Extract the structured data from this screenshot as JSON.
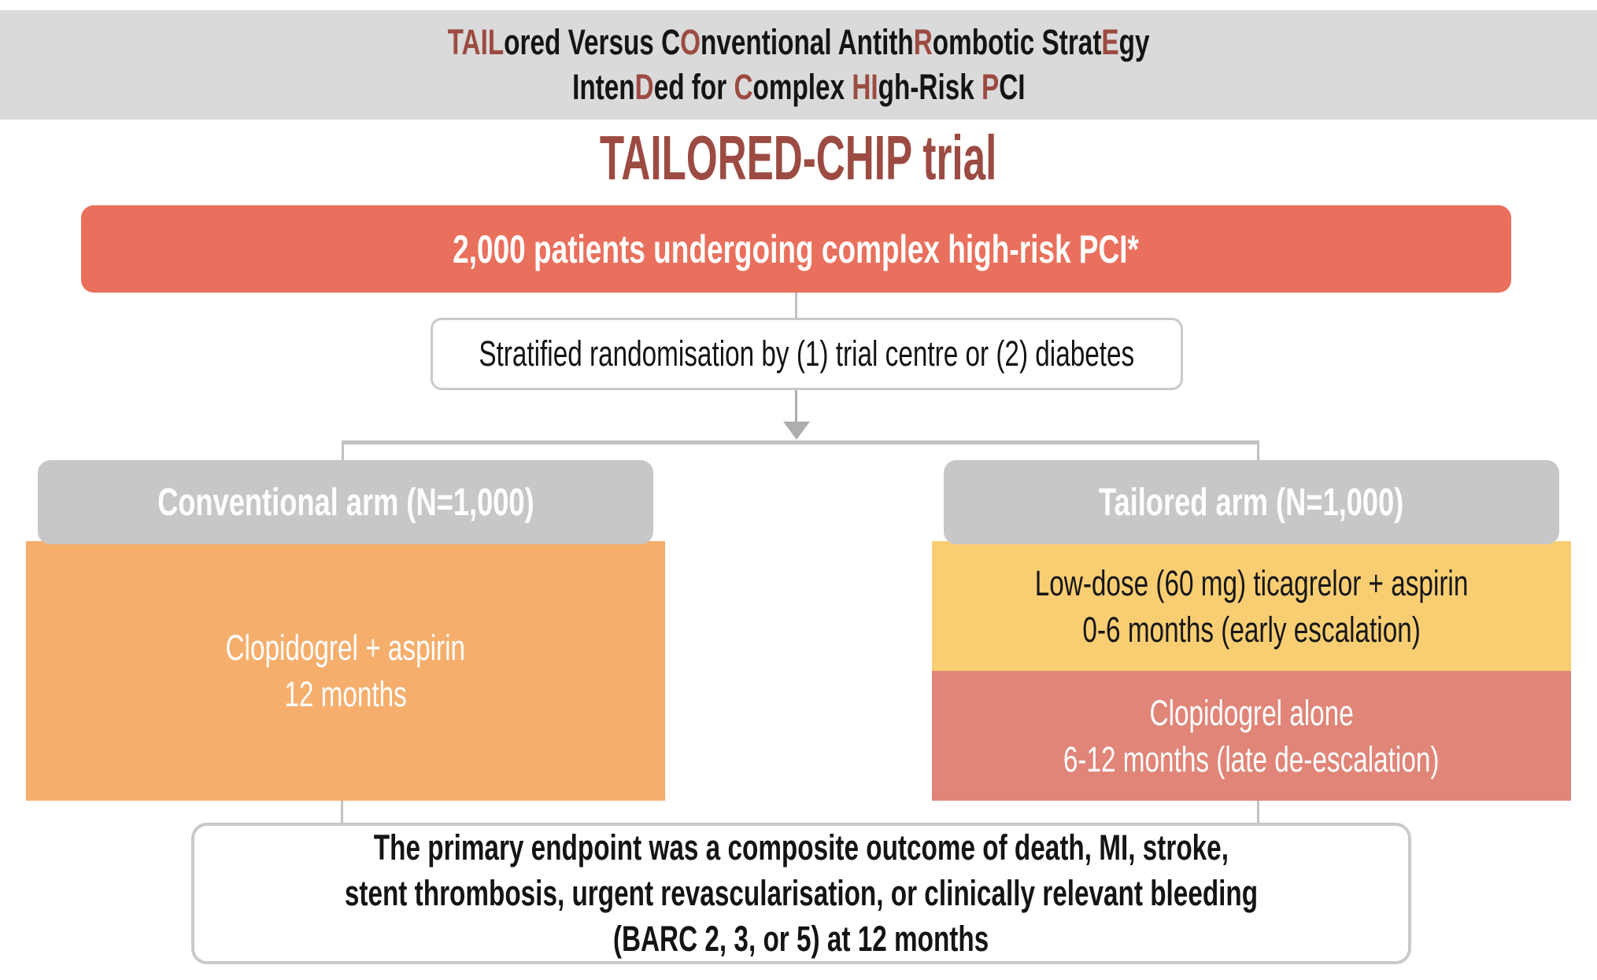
{
  "acronym": {
    "line1": [
      {
        "text": "TAIL",
        "highlight": true
      },
      {
        "text": "ored Versus C",
        "highlight": false
      },
      {
        "text": "O",
        "highlight": true
      },
      {
        "text": "nventional Antith",
        "highlight": false
      },
      {
        "text": "R",
        "highlight": true
      },
      {
        "text": "ombotic Strat",
        "highlight": false
      },
      {
        "text": "E",
        "highlight": true
      },
      {
        "text": "gy",
        "highlight": false
      }
    ],
    "line2": [
      {
        "text": "Inten",
        "highlight": false
      },
      {
        "text": "D",
        "highlight": true
      },
      {
        "text": "ed for ",
        "highlight": false
      },
      {
        "text": "C",
        "highlight": true
      },
      {
        "text": "omplex ",
        "highlight": false
      },
      {
        "text": "HI",
        "highlight": true
      },
      {
        "text": "gh-Risk ",
        "highlight": false
      },
      {
        "text": "P",
        "highlight": true
      },
      {
        "text": "CI",
        "highlight": false
      }
    ]
  },
  "title": "TAILORED-CHIP trial",
  "population_box": "2,000 patients undergoing complex high-risk PCI*",
  "randomisation_box": "Stratified randomisation by (1) trial centre or (2) diabetes",
  "left_arm": {
    "header": "Conventional arm (N=1,000)",
    "treatment_line1": "Clopidogrel + aspirin",
    "treatment_line2": "12 months"
  },
  "right_arm": {
    "header": "Tailored arm (N=1,000)",
    "early_line1": "Low-dose (60 mg) ticagrelor + aspirin",
    "early_line2": "0-6 months (early escalation)",
    "late_line1": "Clopidogrel alone",
    "late_line2": "6-12 months (late de-escalation)"
  },
  "endpoint_box": {
    "line1": "The primary endpoint was a composite outcome of death, MI, stroke,",
    "line2": "stent thrombosis, urgent revascularisation, or clinically relevant bleeding",
    "line3": "(BARC 2, 3, or 5) at 12 months"
  },
  "colors": {
    "band-bg": "#dadada",
    "accent-dark-red": "#9c4b42",
    "population-red": "#e9705d",
    "arm-header-gray": "#c7c7c7",
    "conventional-orange": "#f6ae6c",
    "early-yellow": "#f9ce73",
    "late-salmon": "#e08578",
    "connector-gray": "#c2c2c2",
    "border-gray": "#c9c9c9"
  }
}
